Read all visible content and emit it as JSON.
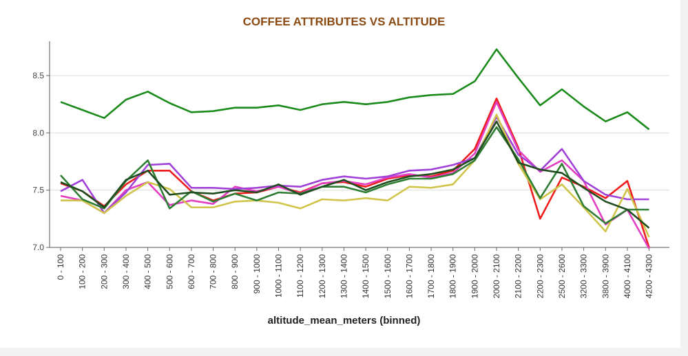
{
  "chart_data": {
    "type": "line",
    "title": "COFFEE ATTRIBUTES VS ALTITUDE",
    "xlabel": "altitude_mean_meters (binned)",
    "ylabel": "",
    "ylim": [
      7.0,
      8.8
    ],
    "yticks": [
      "7.0",
      "7.5",
      "8.0",
      "8.5"
    ],
    "grid": true,
    "legend": "none",
    "categories": [
      "0 - 100",
      "100 - 200",
      "200 - 300",
      "300 - 400",
      "400 - 500",
      "500 - 600",
      "600 - 700",
      "700 - 800",
      "800 - 900",
      "900 - 1000",
      "1000 - 1100",
      "1100 - 1200",
      "1200 - 1300",
      "1300 - 1400",
      "1400 - 1500",
      "1500 - 1600",
      "1600 - 1700",
      "1700 - 1800",
      "1800 - 1900",
      "1900 - 2000",
      "2000 - 2100",
      "2100 - 2200",
      "2200 - 2300",
      "2500 - 2600",
      "3200 - 3300",
      "3800 - 3900",
      "4000 - 4100",
      "4200 - 4300"
    ],
    "series": [
      {
        "color": "#1a8a1a",
        "values": [
          8.27,
          8.2,
          8.13,
          8.29,
          8.36,
          8.26,
          8.18,
          8.19,
          8.22,
          8.22,
          8.24,
          8.2,
          8.25,
          8.27,
          8.25,
          8.27,
          8.31,
          8.33,
          8.34,
          8.45,
          8.73,
          8.48,
          8.24,
          8.38,
          8.23,
          8.1,
          8.18,
          8.03
        ]
      },
      {
        "color": "#ee1c1c",
        "values": [
          7.56,
          7.49,
          7.36,
          7.55,
          7.67,
          7.67,
          7.49,
          7.41,
          7.47,
          7.48,
          7.53,
          7.48,
          7.56,
          7.57,
          7.53,
          7.6,
          7.63,
          7.62,
          7.67,
          7.86,
          8.3,
          7.87,
          7.25,
          7.61,
          7.53,
          7.43,
          7.58,
          7.0
        ]
      },
      {
        "color": "#e23fc2",
        "values": [
          7.45,
          7.41,
          7.3,
          7.5,
          7.57,
          7.37,
          7.41,
          7.38,
          7.53,
          7.49,
          7.53,
          7.47,
          7.56,
          7.58,
          7.55,
          7.61,
          7.64,
          7.61,
          7.65,
          7.82,
          8.27,
          7.85,
          7.66,
          7.76,
          7.58,
          7.2,
          7.33,
          6.99
        ]
      },
      {
        "color": "#a040d8",
        "values": [
          7.49,
          7.59,
          7.3,
          7.48,
          7.72,
          7.73,
          7.52,
          7.52,
          7.51,
          7.52,
          7.54,
          7.53,
          7.59,
          7.62,
          7.6,
          7.62,
          7.67,
          7.68,
          7.72,
          7.78,
          8.14,
          7.81,
          7.67,
          7.86,
          7.58,
          7.46,
          7.42,
          7.42
        ]
      },
      {
        "color": "#d0c44a",
        "values": [
          7.41,
          7.41,
          7.3,
          7.45,
          7.57,
          7.51,
          7.35,
          7.35,
          7.4,
          7.41,
          7.39,
          7.34,
          7.42,
          7.41,
          7.43,
          7.41,
          7.53,
          7.52,
          7.55,
          7.76,
          8.16,
          7.73,
          7.42,
          7.55,
          7.35,
          7.14,
          7.51,
          7.09
        ]
      },
      {
        "color": "#2e7d32",
        "values": [
          7.63,
          7.42,
          7.34,
          7.58,
          7.76,
          7.34,
          7.49,
          7.4,
          7.47,
          7.41,
          7.48,
          7.47,
          7.53,
          7.53,
          7.48,
          7.55,
          7.6,
          7.6,
          7.64,
          7.76,
          8.05,
          7.77,
          7.43,
          7.73,
          7.36,
          7.21,
          7.33,
          7.33
        ]
      },
      {
        "color": "#1f4d1f",
        "values": [
          7.57,
          7.49,
          7.35,
          7.59,
          7.67,
          7.46,
          7.48,
          7.47,
          7.5,
          7.48,
          7.55,
          7.46,
          7.53,
          7.59,
          7.5,
          7.57,
          7.62,
          7.64,
          7.68,
          7.78,
          8.1,
          7.74,
          7.68,
          7.65,
          7.52,
          7.4,
          7.33,
          7.17
        ]
      }
    ]
  }
}
